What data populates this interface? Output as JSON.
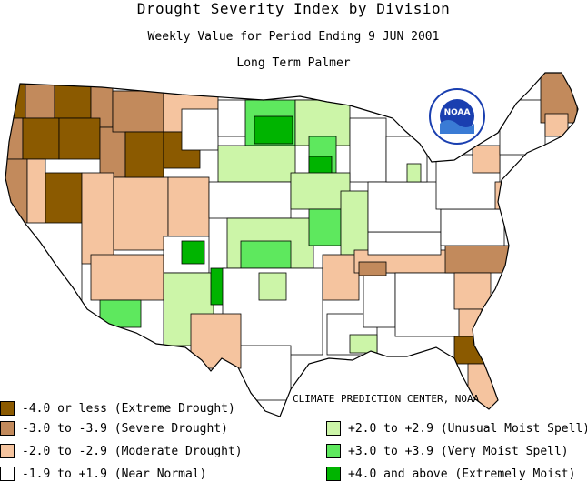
{
  "title": "Drought Severity Index by Division",
  "subtitle": "Weekly Value for Period Ending  9 JUN 2001",
  "index_name": "Long Term Palmer",
  "logo": {
    "text": "NOAA",
    "ring_text": "NATIONAL OCEANIC AND ATMOSPHERIC ADMINISTRATION",
    "colors": {
      "ring": "#ffffff",
      "center": "#1a3fb0",
      "wave": "#3a7bd5"
    }
  },
  "credit": "CLIMATE PREDICTION CENTER, NOAA",
  "legend": [
    {
      "label": "-4.0 or less (Extreme Drought)",
      "color": "#8b5a00"
    },
    {
      "label": "-3.0 to -3.9 (Severe Drought)",
      "color": "#c28a5c"
    },
    {
      "label": "-2.0 to -2.9 (Moderate Drought)",
      "color": "#f5c49f"
    },
    {
      "label": "-1.9 to +1.9 (Near Normal)",
      "color": "#ffffff"
    },
    {
      "label": "+2.0 to +2.9 (Unusual Moist Spell)",
      "color": "#ccf5a8"
    },
    {
      "label": "+3.0 to +3.9 (Very Moist Spell)",
      "color": "#5ee85e"
    },
    {
      "label": "+4.0 and above (Extremely Moist)",
      "color": "#00b400"
    }
  ]
}
